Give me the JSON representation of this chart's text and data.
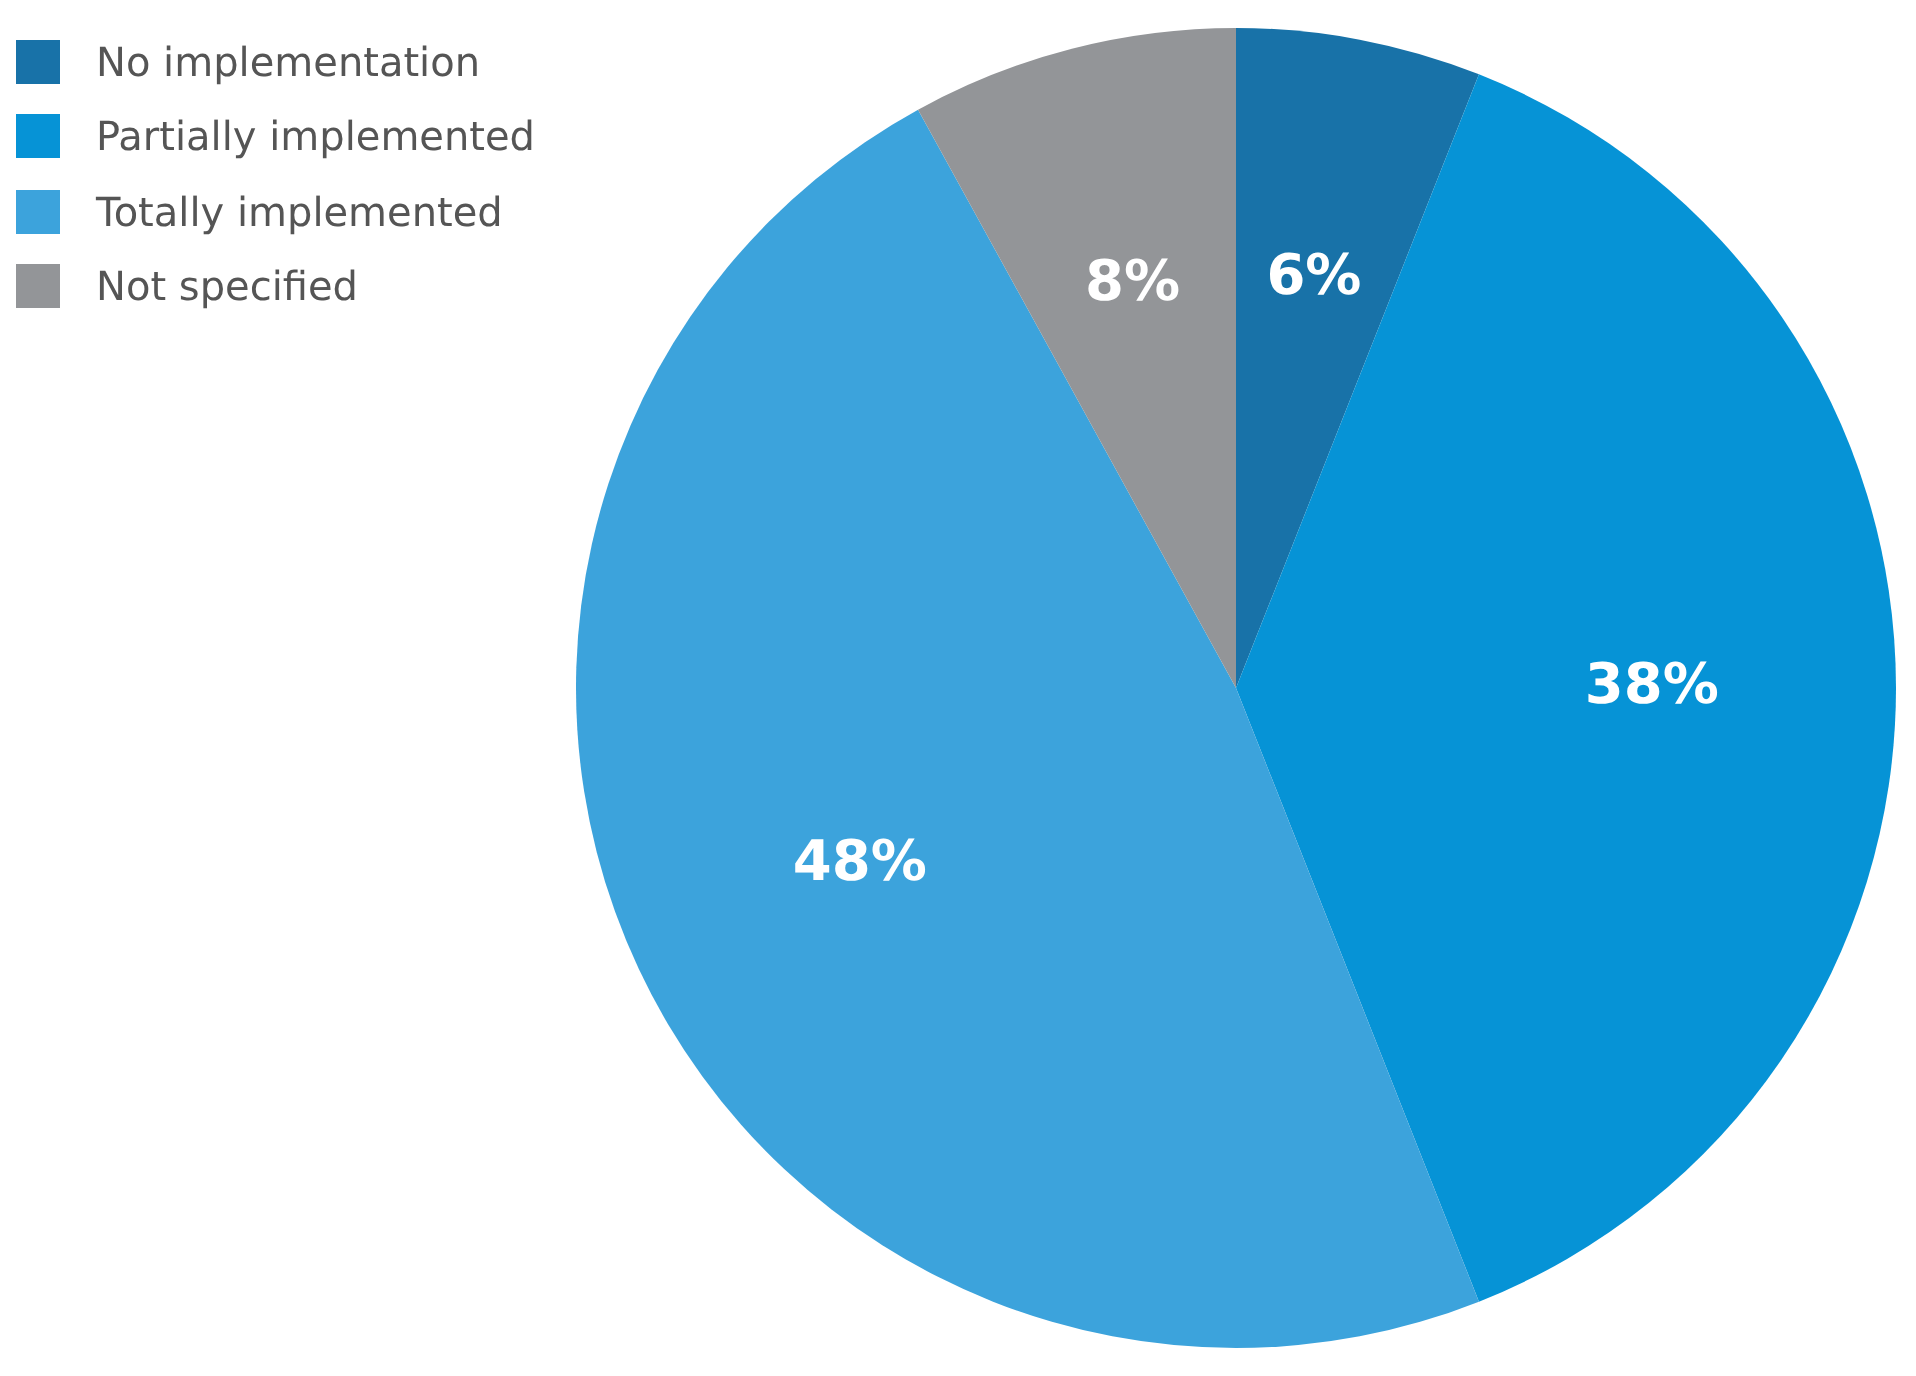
{
  "chart_data": {
    "type": "pie",
    "categories": [
      "No implementation",
      "Partially implemented",
      "Totally implemented",
      "Not specified"
    ],
    "values": [
      6,
      38,
      48,
      8
    ],
    "colors": [
      "#1872a8",
      "#0693d6",
      "#3ca3dc",
      "#939598"
    ],
    "value_labels": [
      "6%",
      "38%",
      "48%",
      "8%"
    ],
    "legend": "top left"
  }
}
